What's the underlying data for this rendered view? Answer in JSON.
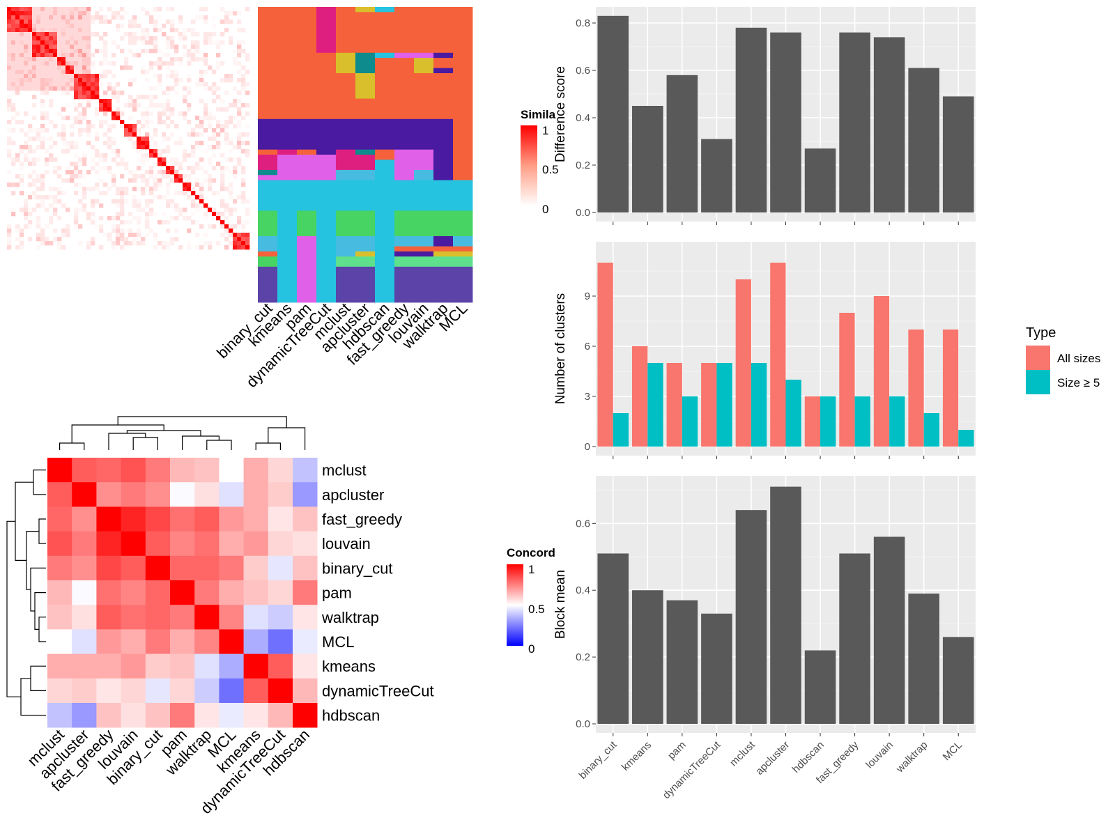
{
  "methods_sim": [
    "binary_cut",
    "kmeans",
    "pam",
    "dynamicTreeCut",
    "mclust",
    "apcluster",
    "hdbscan",
    "fast_greedy",
    "louvain",
    "walktrap",
    "MCL"
  ],
  "similarity_legend": {
    "title": "Simila",
    "ticks": [
      "1",
      "0.5",
      "0"
    ]
  },
  "concordance_legend": {
    "title": "Concord",
    "ticks": [
      "1",
      "0.5",
      "0"
    ]
  },
  "concordance_order": [
    "mclust",
    "apcluster",
    "fast_greedy",
    "louvain",
    "binary_cut",
    "pam",
    "walktrap",
    "MCL",
    "kmeans",
    "dynamicTreeCut",
    "hdbscan"
  ],
  "concordance_matrix": [
    [
      1.0,
      0.82,
      0.8,
      0.84,
      0.76,
      0.64,
      0.62,
      0.5,
      0.66,
      0.58,
      0.38
    ],
    [
      0.82,
      1.0,
      0.72,
      0.76,
      0.72,
      0.49,
      0.56,
      0.44,
      0.66,
      0.6,
      0.3
    ],
    [
      0.8,
      0.72,
      1.0,
      0.93,
      0.86,
      0.78,
      0.82,
      0.7,
      0.66,
      0.55,
      0.62
    ],
    [
      0.84,
      0.76,
      0.93,
      1.0,
      0.82,
      0.74,
      0.78,
      0.66,
      0.7,
      0.58,
      0.56
    ],
    [
      0.76,
      0.72,
      0.86,
      0.82,
      1.0,
      0.8,
      0.8,
      0.76,
      0.6,
      0.45,
      0.62
    ],
    [
      0.64,
      0.49,
      0.78,
      0.74,
      0.8,
      1.0,
      0.76,
      0.66,
      0.62,
      0.58,
      0.76
    ],
    [
      0.62,
      0.56,
      0.82,
      0.78,
      0.8,
      0.76,
      1.0,
      0.74,
      0.44,
      0.4,
      0.55
    ],
    [
      0.5,
      0.44,
      0.7,
      0.66,
      0.76,
      0.66,
      0.74,
      1.0,
      0.34,
      0.22,
      0.46
    ],
    [
      0.66,
      0.66,
      0.66,
      0.7,
      0.6,
      0.62,
      0.44,
      0.34,
      1.0,
      0.82,
      0.55
    ],
    [
      0.58,
      0.6,
      0.55,
      0.58,
      0.45,
      0.58,
      0.4,
      0.22,
      0.82,
      1.0,
      0.64
    ],
    [
      0.38,
      0.3,
      0.62,
      0.56,
      0.62,
      0.76,
      0.55,
      0.46,
      0.55,
      0.64,
      1.0
    ]
  ],
  "cluster_colors": {
    "A": "#f5613a",
    "B": "#df1f80",
    "C": "#d9bf2b",
    "D": "#0d8b8d",
    "E": "#4a1aa0",
    "F": "#e060e8",
    "G": "#25c3e0",
    "H": "#47d463",
    "I": "#3b4fc8",
    "J": "#5b43a8",
    "K": "#47bce0",
    "L": "#5ee08c"
  },
  "colors": {
    "bar_dark": "#595959",
    "panel_bg": "#ebebeb",
    "all_sizes": "#f8766d",
    "size_ge5": "#00bfc4"
  },
  "chart_data": [
    {
      "type": "bar",
      "categories": [
        "binary_cut",
        "kmeans",
        "pam",
        "dynamicTreeCut",
        "mclust",
        "apcluster",
        "hdbscan",
        "fast_greedy",
        "louvain",
        "walktrap",
        "MCL"
      ],
      "values": [
        0.83,
        0.45,
        0.58,
        0.31,
        0.78,
        0.76,
        0.27,
        0.76,
        0.74,
        0.61,
        0.49
      ],
      "title": "",
      "xlabel": "",
      "ylabel": "Difference score",
      "ylim": [
        0,
        0.85
      ],
      "yticks": [
        "0.0",
        "0.2",
        "0.4",
        "0.6",
        "0.8"
      ],
      "grid": true
    },
    {
      "type": "bar",
      "categories": [
        "binary_cut",
        "kmeans",
        "pam",
        "dynamicTreeCut",
        "mclust",
        "apcluster",
        "hdbscan",
        "fast_greedy",
        "louvain",
        "walktrap",
        "MCL"
      ],
      "series": [
        {
          "name": "All sizes",
          "values": [
            11,
            6,
            5,
            5,
            10,
            11,
            3,
            8,
            9,
            7,
            7
          ]
        },
        {
          "name": "Size ≥ 5",
          "values": [
            2,
            5,
            3,
            5,
            5,
            4,
            3,
            3,
            3,
            2,
            1
          ]
        }
      ],
      "title": "",
      "xlabel": "",
      "ylabel": "Number of clusters",
      "ylim": [
        0,
        12
      ],
      "yticks": [
        "0",
        "3",
        "6",
        "9"
      ],
      "legend": {
        "title": "Type",
        "position": "right"
      },
      "grid": true
    },
    {
      "type": "bar",
      "categories": [
        "binary_cut",
        "kmeans",
        "pam",
        "dynamicTreeCut",
        "mclust",
        "apcluster",
        "hdbscan",
        "fast_greedy",
        "louvain",
        "walktrap",
        "MCL"
      ],
      "values": [
        0.51,
        0.4,
        0.37,
        0.33,
        0.64,
        0.71,
        0.22,
        0.51,
        0.56,
        0.39,
        0.26
      ],
      "title": "",
      "xlabel": "",
      "ylabel": "Block mean",
      "ylim": [
        0,
        0.73
      ],
      "yticks": [
        "0.0",
        "0.2",
        "0.4",
        "0.6"
      ],
      "grid": true
    }
  ]
}
